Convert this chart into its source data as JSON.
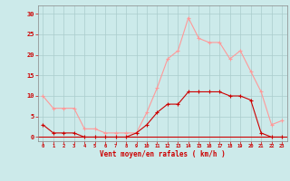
{
  "hours": [
    0,
    1,
    2,
    3,
    4,
    5,
    6,
    7,
    8,
    9,
    10,
    11,
    12,
    13,
    14,
    15,
    16,
    17,
    18,
    19,
    20,
    21,
    22,
    23
  ],
  "wind_mean": [
    3,
    1,
    1,
    1,
    0,
    0,
    0,
    0,
    0,
    1,
    3,
    6,
    8,
    8,
    11,
    11,
    11,
    11,
    10,
    10,
    9,
    1,
    0,
    0
  ],
  "wind_gust": [
    10,
    7,
    7,
    7,
    2,
    2,
    1,
    1,
    1,
    1,
    6,
    12,
    19,
    21,
    29,
    24,
    23,
    23,
    19,
    21,
    16,
    11,
    3,
    4
  ],
  "mean_color": "#cc0000",
  "gust_color": "#ff9999",
  "bg_color": "#cceaea",
  "grid_color": "#aacccc",
  "xlabel": "Vent moyen/en rafales ( km/h )",
  "ylabel_ticks": [
    0,
    5,
    10,
    15,
    20,
    25,
    30
  ],
  "xlim": [
    -0.5,
    23.5
  ],
  "ylim": [
    -1,
    32
  ],
  "xlabel_color": "#cc0000",
  "tick_color": "#cc0000",
  "axis_color": "#888888",
  "fig_width": 3.2,
  "fig_height": 2.0,
  "dpi": 100
}
